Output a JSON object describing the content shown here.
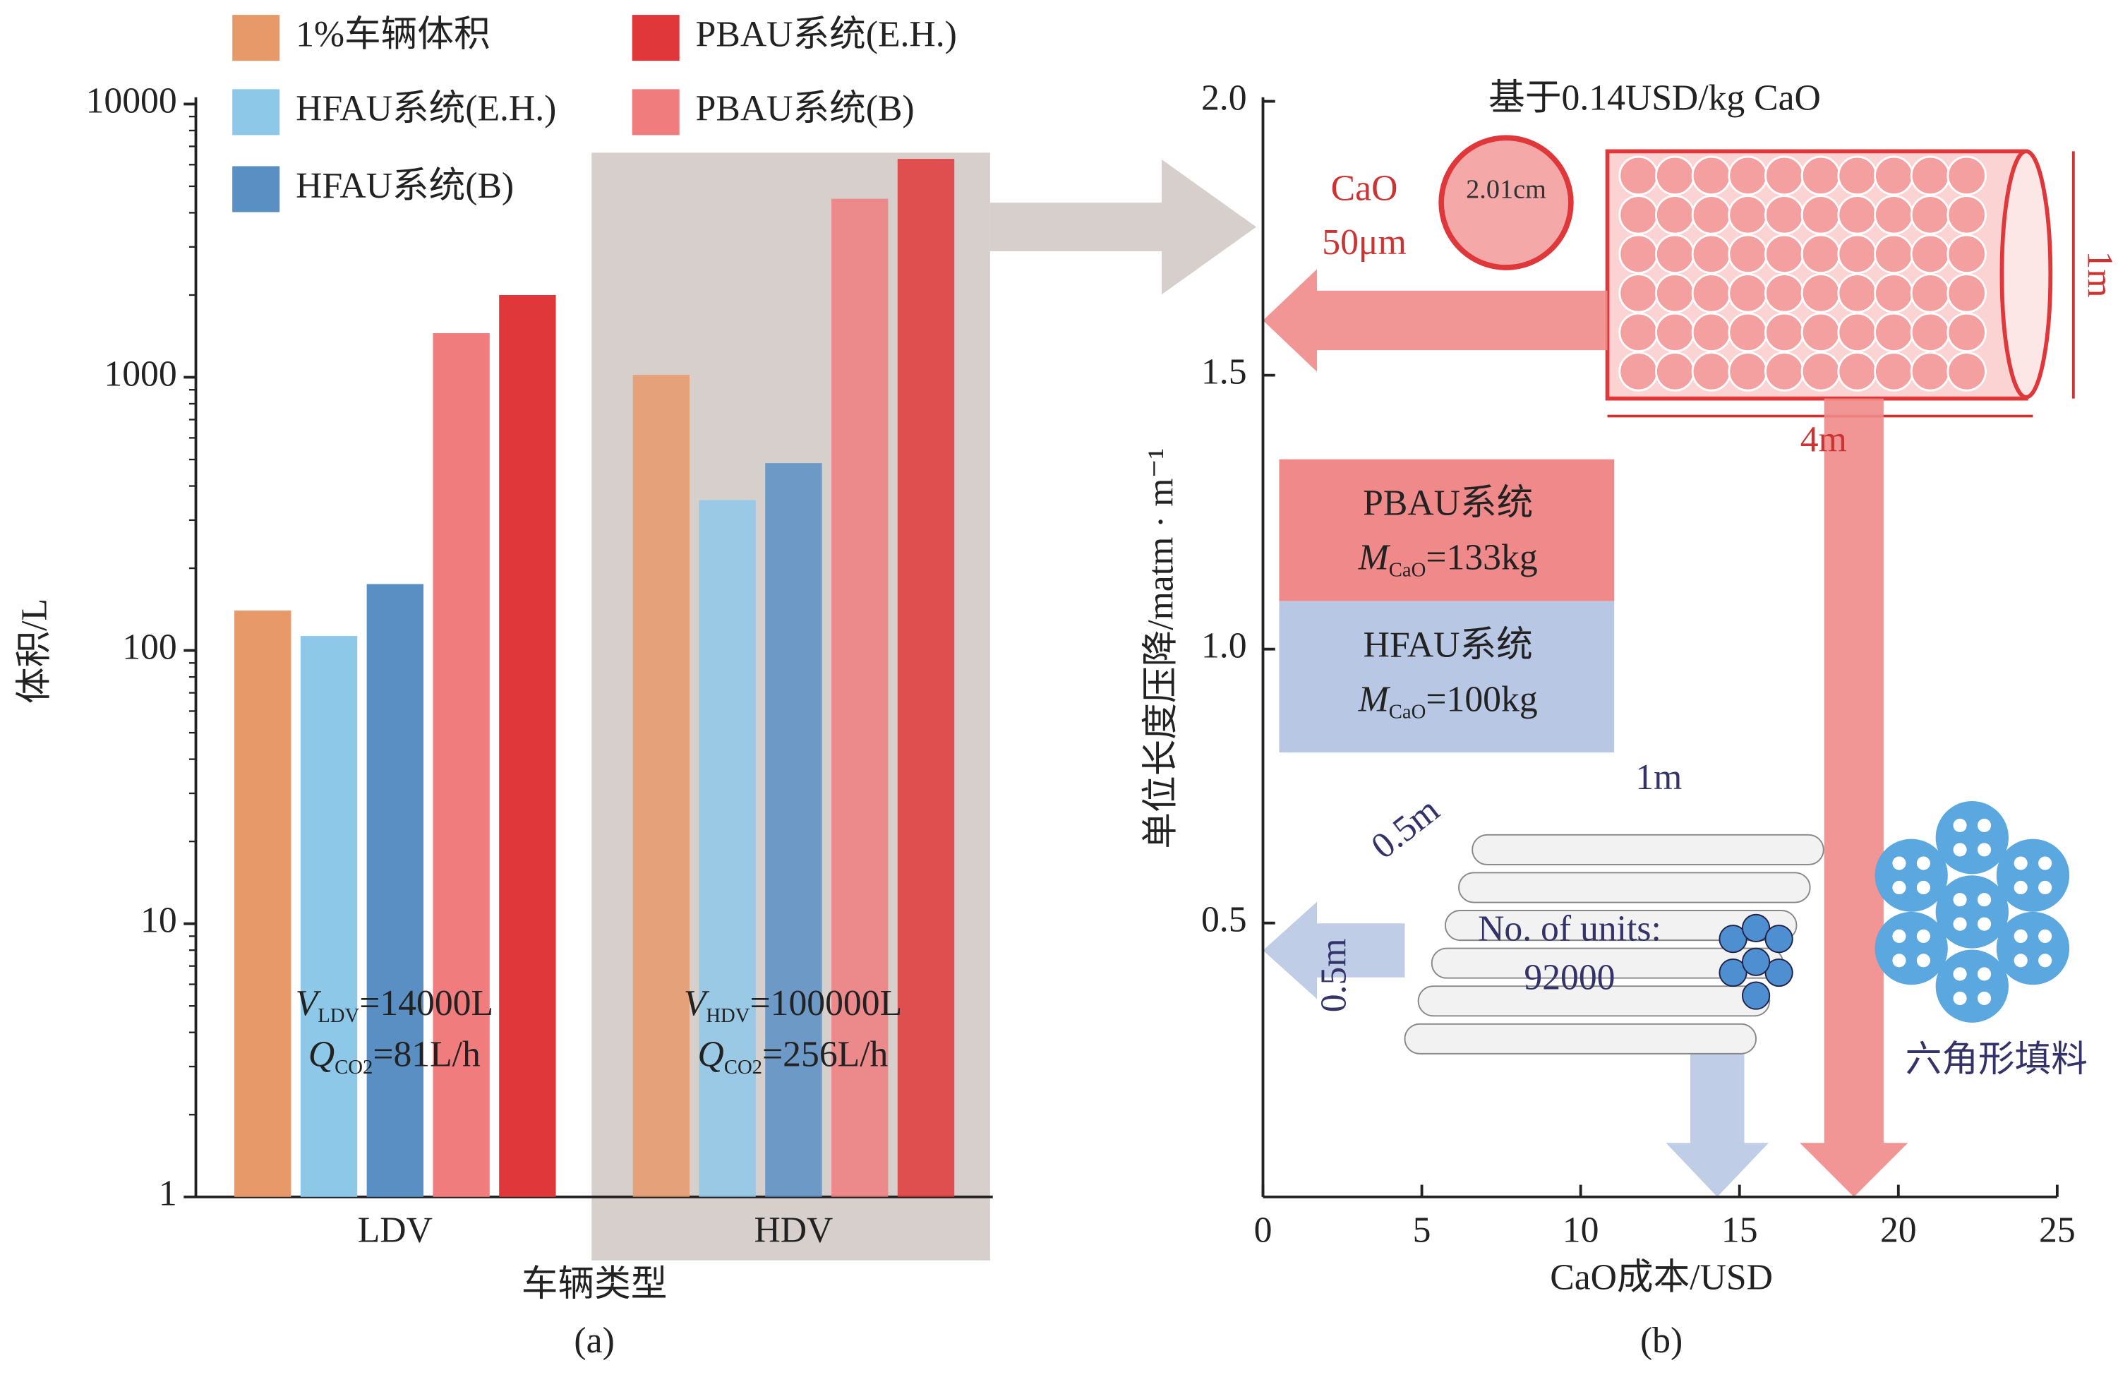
{
  "chart_data": [
    {
      "type": "bar",
      "log_scale": true,
      "xlabel": "车辆类型",
      "ylabel": "体积/L",
      "caption": "(a)",
      "categories": [
        "LDV",
        "HDV"
      ],
      "series": [
        {
          "name": "1%车辆体积",
          "color": "#e8996a",
          "values": [
            140,
            1020
          ]
        },
        {
          "name": "HFAU系统(E.H.)",
          "color": "#8ec8e8",
          "values": [
            113,
            355
          ]
        },
        {
          "name": "HFAU系统(B)",
          "color": "#5a8fc4",
          "values": [
            175,
            485
          ]
        },
        {
          "name": "PBAU系统(B)",
          "color": "#f07c7e",
          "values": [
            1450,
            4500
          ]
        },
        {
          "name": "PBAU系统(E.H.)",
          "color": "#e0383a",
          "values": [
            2000,
            6300
          ]
        }
      ],
      "ylim": [
        1,
        10000
      ],
      "yticks": [
        1,
        10,
        100,
        1000,
        10000
      ],
      "annotations": [
        {
          "parts": [
            "V",
            "LDV",
            "=14000L"
          ]
        },
        {
          "parts": [
            "Q",
            "CO2",
            "=81L/h"
          ]
        },
        {
          "parts": [
            "V",
            "HDV",
            "=100000L"
          ]
        },
        {
          "parts": [
            "Q",
            "CO2",
            "=256L/h"
          ]
        }
      ]
    },
    {
      "type": "arrow",
      "title": "基于0.14USD/kg CaO",
      "xlabel": "CaO成本/USD",
      "ylabel": "单位长度压降/matm · m⁻¹",
      "caption": "(b)",
      "series": [
        {
          "name": "PBAU系统",
          "color": "#f08a8a",
          "x": 18.6,
          "y": 1.6,
          "mass": [
            "M",
            "CaO",
            "=133kg"
          ]
        },
        {
          "name": "HFAU系统",
          "color": "#b8c8e4",
          "x": 14.3,
          "y": 0.45,
          "mass": [
            "M",
            "CaO",
            "=100kg"
          ]
        }
      ],
      "xlim": [
        0,
        25
      ],
      "xticks": [
        0,
        5,
        10,
        15,
        20,
        25
      ],
      "ylim": [
        0,
        2
      ],
      "yticks": [
        {
          "value": 0.5,
          "label": "0.5"
        },
        {
          "value": 1,
          "label": "1.0"
        },
        1.5,
        {
          "value": 2,
          "label": "2.0"
        }
      ],
      "annotations": [
        "CaO",
        "50μm",
        "2.01cm",
        "1m",
        "4m",
        "1m",
        "0.5m",
        "0.5m",
        "No. of units:",
        "92000",
        "六角形填料"
      ]
    }
  ]
}
